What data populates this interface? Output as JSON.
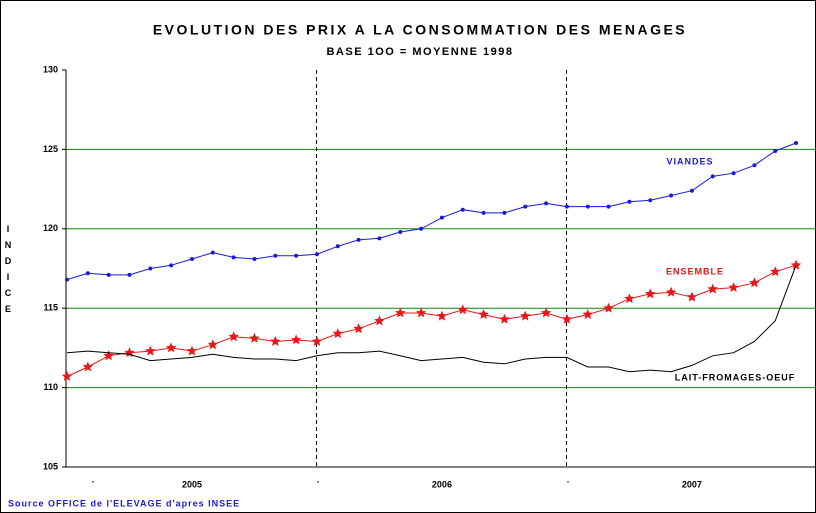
{
  "chart_data": {
    "type": "line",
    "title": "EVOLUTION DES PRIX A LA CONSOMMATION DES MENAGES",
    "subtitle": "BASE 1OO = MOYENNE 1998",
    "y_label": "INDICE",
    "source": "Source OFFICE de l'ELEVAGE d'apres INSEE",
    "categories": [
      null,
      null,
      null,
      null,
      null,
      null,
      "2005",
      null,
      null,
      null,
      null,
      null,
      null,
      null,
      null,
      null,
      null,
      null,
      "2006",
      null,
      null,
      null,
      null,
      null,
      null,
      null,
      null,
      null,
      null,
      null,
      "2007",
      null,
      null,
      null,
      null,
      null
    ],
    "period_marks": [
      ".",
      ".",
      "."
    ],
    "ylim": [
      105,
      130
    ],
    "yticks": [
      105,
      110,
      115,
      120,
      125,
      130
    ],
    "grid": true,
    "series": [
      {
        "name": "VIANDES",
        "color": "#1a1adc",
        "marker": "dot",
        "values": [
          116.8,
          117.2,
          117.1,
          117.1,
          117.5,
          117.7,
          118.1,
          118.5,
          118.2,
          118.1,
          118.3,
          118.3,
          118.4,
          118.9,
          119.3,
          119.4,
          119.8,
          120.0,
          120.7,
          121.2,
          121.0,
          121.0,
          121.4,
          121.6,
          121.4,
          121.4,
          121.4,
          121.7,
          121.8,
          122.1,
          122.4,
          123.3,
          123.5,
          124.0,
          124.9,
          125.4
        ]
      },
      {
        "name": "ENSEMBLE",
        "color": "#e81818",
        "marker": "star",
        "values": [
          110.7,
          111.3,
          112.0,
          112.2,
          112.3,
          112.5,
          112.3,
          112.7,
          113.2,
          113.1,
          112.9,
          113.0,
          112.9,
          113.4,
          113.7,
          114.2,
          114.7,
          114.7,
          114.5,
          114.9,
          114.6,
          114.3,
          114.5,
          114.7,
          114.3,
          114.6,
          115.0,
          115.6,
          115.9,
          116.0,
          115.7,
          116.2,
          116.3,
          116.6,
          117.3,
          117.7
        ]
      },
      {
        "name": "LAIT-FROMAGES-OEUF",
        "color": "#000000",
        "marker": "none",
        "values": [
          112.2,
          112.3,
          112.2,
          112.1,
          111.7,
          111.8,
          111.9,
          112.1,
          111.9,
          111.8,
          111.8,
          111.7,
          112.0,
          112.2,
          112.2,
          112.3,
          112.0,
          111.7,
          111.8,
          111.9,
          111.6,
          111.5,
          111.8,
          111.9,
          111.9,
          111.3,
          111.3,
          111.0,
          111.1,
          111.0,
          111.4,
          112.0,
          112.2,
          112.9,
          114.2,
          117.7
        ]
      }
    ]
  }
}
